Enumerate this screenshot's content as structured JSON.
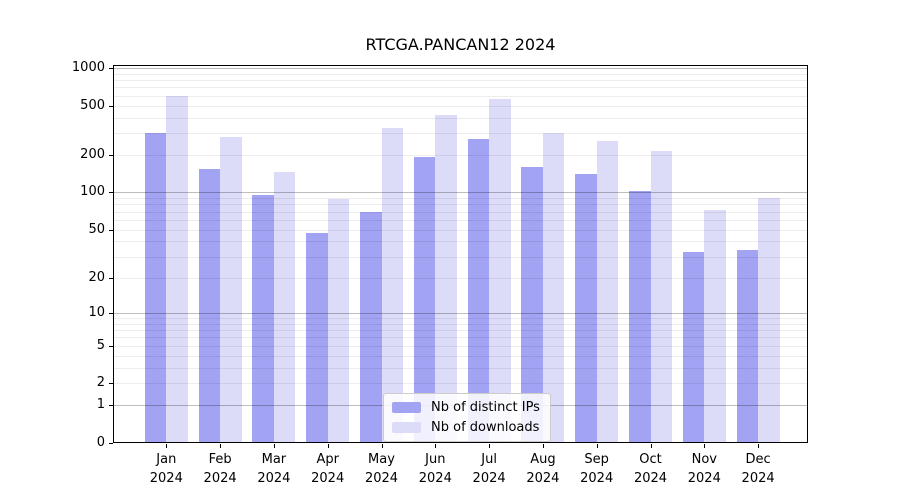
{
  "title": "RTCGA.PANCAN12 2024",
  "chart_data": {
    "type": "bar",
    "title": "RTCGA.PANCAN12 2024",
    "categories": [
      "Jan 2024",
      "Feb 2024",
      "Mar 2024",
      "Apr 2024",
      "May 2024",
      "Jun 2024",
      "Jul 2024",
      "Aug 2024",
      "Sep 2024",
      "Oct 2024",
      "Nov 2024",
      "Dec 2024"
    ],
    "series": [
      {
        "name": "Nb of distinct IPs",
        "color": "#a3a3f3",
        "values": [
          300,
          155,
          95,
          47,
          70,
          195,
          270,
          160,
          140,
          102,
          33,
          34
        ]
      },
      {
        "name": "Nb of downloads",
        "color": "#dcdcf9",
        "values": [
          600,
          280,
          145,
          88,
          330,
          420,
          560,
          300,
          258,
          215,
          72,
          90
        ]
      }
    ],
    "xlabel": "",
    "ylabel": "",
    "yscale": "log1p",
    "ylim": [
      0,
      1000
    ],
    "yticks": [
      1000,
      500,
      200,
      100,
      50,
      20,
      10,
      5,
      2,
      1,
      0
    ],
    "grid": "both",
    "legend_position": "lower center"
  },
  "colors": {
    "background": "#ffffff",
    "axis": "#000000",
    "major_grid": "#bfbfbf",
    "minor_grid": "#ededed"
  }
}
